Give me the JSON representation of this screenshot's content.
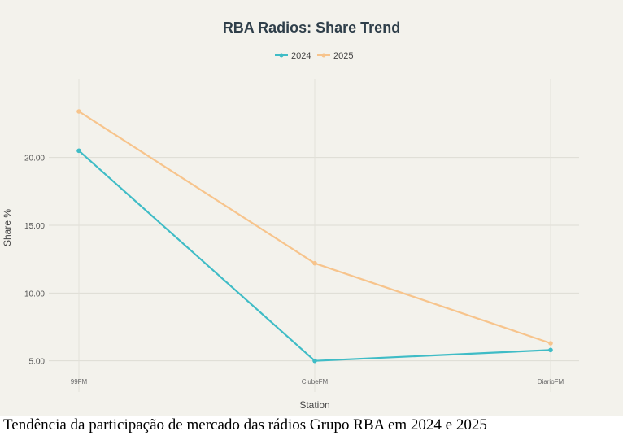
{
  "chart_data": {
    "type": "line",
    "title": "RBA Radios: Share Trend",
    "xlabel": "Station",
    "ylabel": "Share %",
    "categories": [
      "99FM",
      "ClubeFM",
      "DiarioFM"
    ],
    "series": [
      {
        "name": "2024",
        "values": [
          20.5,
          5.0,
          5.8
        ],
        "color": "#3fbcc6"
      },
      {
        "name": "2025",
        "values": [
          23.4,
          12.2,
          6.3
        ],
        "color": "#f7c48c"
      }
    ],
    "yticks": [
      "5.00",
      "10.00",
      "15.00",
      "20.00"
    ],
    "ylim": [
      2.7,
      25.8
    ],
    "grid": true,
    "legend": "top-center"
  },
  "caption": "Tendência da participação de mercado das rádios Grupo RBA em 2024 e 2025"
}
